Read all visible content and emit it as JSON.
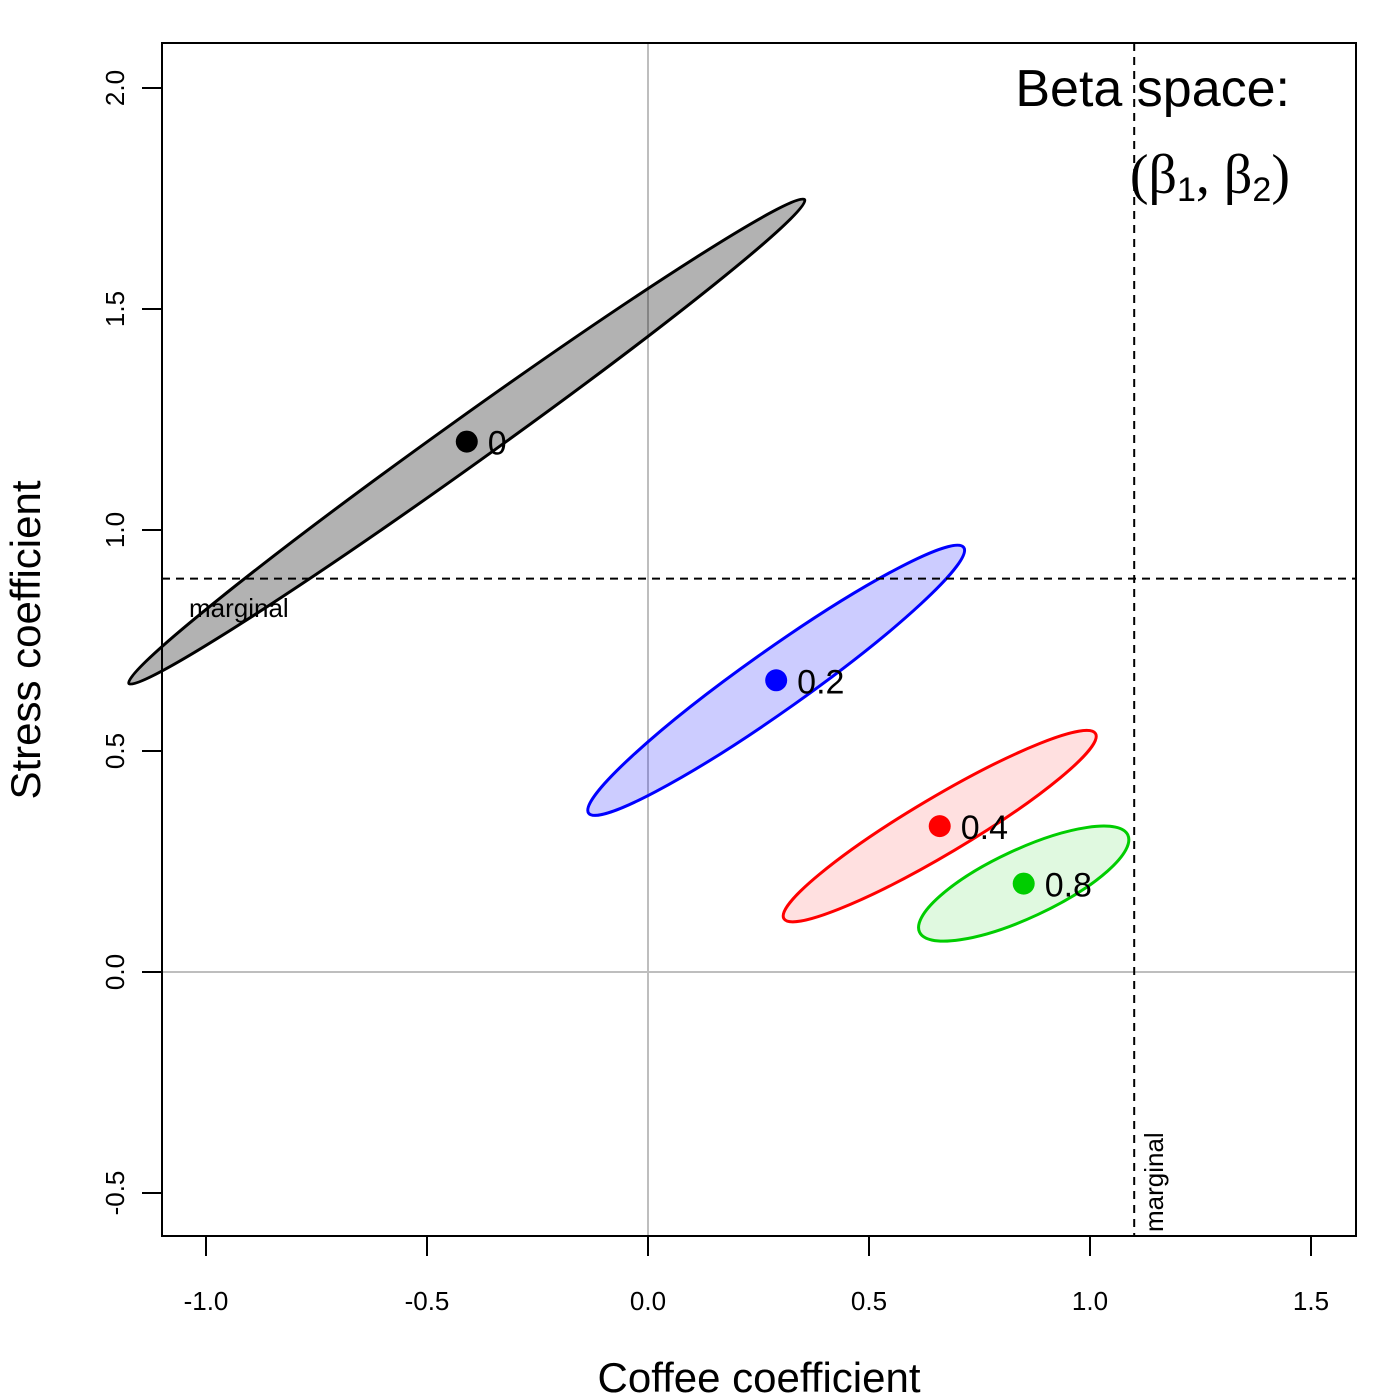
{
  "chart_data": {
    "type": "scatter",
    "title_line1": "Beta space:",
    "title_line2": {
      "open": "(",
      "beta": "β",
      "sub1": "1",
      "sep": ", ",
      "sub2": "2",
      "close": ")"
    },
    "xlabel": "Coffee coefficient",
    "ylabel": "Stress coefficient",
    "xlim": [
      -1.1,
      1.6
    ],
    "ylim": [
      -0.6,
      2.1
    ],
    "x_ticks": [
      -1.0,
      -0.5,
      0.0,
      0.5,
      1.0,
      1.5
    ],
    "x_tick_labels": [
      "-1.0",
      "-0.5",
      "0.0",
      "0.5",
      "1.0",
      "1.5"
    ],
    "y_ticks": [
      -0.5,
      0.0,
      0.5,
      1.0,
      1.5,
      2.0
    ],
    "y_tick_labels": [
      "-0.5",
      "0.0",
      "0.5",
      "1.0",
      "1.5",
      "2.0"
    ],
    "grid": false,
    "zero_lines": {
      "x": 0,
      "y": 0,
      "color": "#bebebe"
    },
    "marginal": {
      "x": 1.1,
      "y": 0.89,
      "label_h": "marginal",
      "label_v": "marginal"
    },
    "series": [
      {
        "name": "0",
        "x": -0.41,
        "y": 1.2,
        "color": "#000000",
        "fill": "rgba(0,0,0,0.30)",
        "ellipse": {
          "a": 0.94,
          "b": 0.052,
          "angle_deg": -35.6
        }
      },
      {
        "name": "0.2",
        "x": 0.29,
        "y": 0.66,
        "color": "#0000ff",
        "fill": "rgba(0,0,255,0.20)",
        "ellipse": {
          "a": 0.52,
          "b": 0.068,
          "angle_deg": -35.3
        }
      },
      {
        "name": "0.4",
        "x": 0.66,
        "y": 0.33,
        "color": "#ff0000",
        "fill": "rgba(255,0,0,0.12)",
        "ellipse": {
          "a": 0.41,
          "b": 0.064,
          "angle_deg": -30.7
        }
      },
      {
        "name": "0.8",
        "x": 0.85,
        "y": 0.2,
        "color": "#00cd00",
        "fill": "rgba(0,205,0,0.12)",
        "ellipse": {
          "a": 0.26,
          "b": 0.077,
          "angle_deg": -25.0
        }
      }
    ]
  }
}
